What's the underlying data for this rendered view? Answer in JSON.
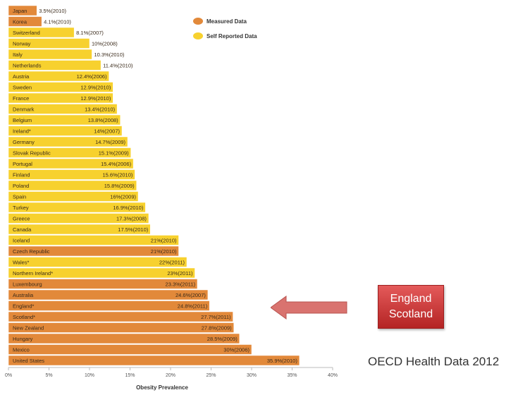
{
  "colors": {
    "measured": "#e2893a",
    "self_reported": "#f7d12e",
    "arrow": "#d9736f"
  },
  "callout": {
    "line1": "England",
    "line2": "Scotland",
    "arrow_icon": "left-arrow-icon"
  },
  "source_note": "OECD Health Data 2012",
  "chart_data": {
    "type": "bar",
    "orientation": "horizontal",
    "xlabel": "Obesity Prevalence",
    "xlim": [
      0,
      40
    ],
    "xticks": [
      "0%",
      "5%",
      "10%",
      "15%",
      "20%",
      "25%",
      "30%",
      "35%",
      "40%"
    ],
    "grid": false,
    "legend_position": "top",
    "legend": [
      {
        "key": "measured",
        "label": "Measured Data"
      },
      {
        "key": "self_reported",
        "label": "Self Reported Data"
      }
    ],
    "bars": [
      {
        "country": "Japan",
        "value": 3.5,
        "label": "3.5%(2010)",
        "type": "measured"
      },
      {
        "country": "Korea",
        "value": 4.1,
        "label": "4.1%(2010)",
        "type": "measured"
      },
      {
        "country": "Switzerland",
        "value": 8.1,
        "label": "8.1%(2007)",
        "type": "self_reported"
      },
      {
        "country": "Norway",
        "value": 10,
        "label": "10%(2008)",
        "type": "self_reported"
      },
      {
        "country": "Italy",
        "value": 10.3,
        "label": "10.3%(2010)",
        "type": "self_reported"
      },
      {
        "country": "Netherlands",
        "value": 11.4,
        "label": "11.4%(2010)",
        "type": "self_reported"
      },
      {
        "country": "Austria",
        "value": 12.4,
        "label": "12.4%(2006)",
        "type": "self_reported"
      },
      {
        "country": "Sweden",
        "value": 12.9,
        "label": "12.9%(2010)",
        "type": "self_reported"
      },
      {
        "country": "France",
        "value": 12.9,
        "label": "12.9%(2010)",
        "type": "self_reported"
      },
      {
        "country": "Denmark",
        "value": 13.4,
        "label": "13.4%(2010)",
        "type": "self_reported"
      },
      {
        "country": "Belgium",
        "value": 13.8,
        "label": "13.8%(2008)",
        "type": "self_reported"
      },
      {
        "country": "Ireland*",
        "value": 14,
        "label": "14%(2007)",
        "type": "self_reported"
      },
      {
        "country": "Germany",
        "value": 14.7,
        "label": "14.7%(2009)",
        "type": "self_reported"
      },
      {
        "country": "Slovak Republic",
        "value": 15.1,
        "label": "15.1%(2009)",
        "type": "self_reported"
      },
      {
        "country": "Portugal",
        "value": 15.4,
        "label": "15.4%(2006)",
        "type": "self_reported"
      },
      {
        "country": "Finland",
        "value": 15.6,
        "label": "15.6%(2010)",
        "type": "self_reported"
      },
      {
        "country": "Poland",
        "value": 15.8,
        "label": "15.8%(2009)",
        "type": "self_reported"
      },
      {
        "country": "Spain",
        "value": 16,
        "label": "16%(2009)",
        "type": "self_reported"
      },
      {
        "country": "Turkey",
        "value": 16.9,
        "label": "16.9%(2010)",
        "type": "self_reported"
      },
      {
        "country": "Greece",
        "value": 17.3,
        "label": "17.3%(2008)",
        "type": "self_reported"
      },
      {
        "country": "Canada",
        "value": 17.5,
        "label": "17.5%(2010)",
        "type": "self_reported"
      },
      {
        "country": "Iceland",
        "value": 21,
        "label": "21%(2010)",
        "type": "self_reported"
      },
      {
        "country": "Czech Republic",
        "value": 21,
        "label": "21%(2010)",
        "type": "measured"
      },
      {
        "country": "Wales*",
        "value": 22,
        "label": "22%(2011)",
        "type": "self_reported"
      },
      {
        "country": "Northern Ireland*",
        "value": 23,
        "label": "23%(2011)",
        "type": "self_reported"
      },
      {
        "country": "Luxembourg",
        "value": 23.3,
        "label": "23.3%(2011)",
        "type": "measured"
      },
      {
        "country": "Australia",
        "value": 24.6,
        "label": "24.6%(2007)",
        "type": "measured"
      },
      {
        "country": "England*",
        "value": 24.8,
        "label": "24.8%(2011)",
        "type": "measured"
      },
      {
        "country": "Scotland*",
        "value": 27.7,
        "label": "27.7%(2011)",
        "type": "measured"
      },
      {
        "country": "New Zealand",
        "value": 27.8,
        "label": "27.8%(2009)",
        "type": "measured"
      },
      {
        "country": "Hungary",
        "value": 28.5,
        "label": "28.5%(2009)",
        "type": "measured"
      },
      {
        "country": "Mexico",
        "value": 30,
        "label": "30%(2006)",
        "type": "measured"
      },
      {
        "country": "United States",
        "value": 35.9,
        "label": "35.9%(2010)",
        "type": "measured"
      }
    ]
  }
}
